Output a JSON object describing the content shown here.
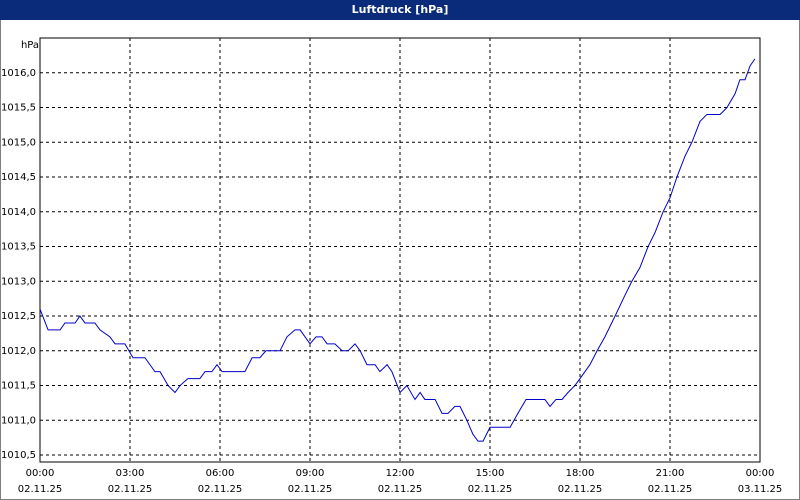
{
  "chart_data": {
    "type": "line",
    "title": "Luftdruck [hPa]",
    "y_unit": "hPa",
    "color": "#0000cc",
    "grid": true,
    "xlim": [
      0,
      24
    ],
    "ylim": [
      1010.4,
      1016.5
    ],
    "xticks": [
      {
        "value": 0,
        "label": "00:00"
      },
      {
        "value": 3,
        "label": "03:00"
      },
      {
        "value": 6,
        "label": "06:00"
      },
      {
        "value": 9,
        "label": "09:00"
      },
      {
        "value": 12,
        "label": "12:00"
      },
      {
        "value": 15,
        "label": "15:00"
      },
      {
        "value": 18,
        "label": "18:00"
      },
      {
        "value": 21,
        "label": "21:00"
      },
      {
        "value": 24,
        "label": "00:00"
      }
    ],
    "xtick_dates": [
      "02.11.25",
      "02.11.25",
      "02.11.25",
      "02.11.25",
      "02.11.25",
      "02.11.25",
      "02.11.25",
      "02.11.25",
      "03.11.25"
    ],
    "yticks": [
      {
        "value": 1010.5,
        "label": "1010,5"
      },
      {
        "value": 1011,
        "label": "1011,0"
      },
      {
        "value": 1011.5,
        "label": "1011,5"
      },
      {
        "value": 1012,
        "label": "1012,0"
      },
      {
        "value": 1012.5,
        "label": "1012,5"
      },
      {
        "value": 1013,
        "label": "1013,0"
      },
      {
        "value": 1013.5,
        "label": "1013,5"
      },
      {
        "value": 1014,
        "label": "1014,0"
      },
      {
        "value": 1014.5,
        "label": "1014,5"
      },
      {
        "value": 1015,
        "label": "1015,0"
      },
      {
        "value": 1015.5,
        "label": "1015,5"
      },
      {
        "value": 1016,
        "label": "1016,0"
      }
    ],
    "x": [
      0,
      0.27,
      0.67,
      0.83,
      1.17,
      1.33,
      1.5,
      1.83,
      2,
      2.33,
      2.5,
      2.83,
      3.1,
      3.5,
      3.83,
      4,
      4.27,
      4.5,
      4.67,
      4.93,
      5.33,
      5.5,
      5.73,
      5.9,
      6.07,
      6.83,
      7.07,
      7.33,
      7.53,
      8,
      8.23,
      8.5,
      8.67,
      9,
      9.2,
      9.4,
      9.57,
      9.83,
      10.07,
      10.27,
      10.5,
      10.67,
      10.9,
      11.17,
      11.33,
      11.57,
      11.73,
      12,
      12.23,
      12.5,
      12.67,
      12.83,
      13.17,
      13.4,
      13.6,
      13.83,
      14,
      14.23,
      14.43,
      14.6,
      14.77,
      15,
      15.67,
      15.93,
      16.2,
      16.83,
      17,
      17.2,
      17.4,
      17.6,
      17.83,
      18,
      18.33,
      18.57,
      18.83,
      19.17,
      19.5,
      19.73,
      20,
      20.27,
      20.5,
      20.77,
      21,
      21.23,
      21.5,
      21.73,
      22,
      22.23,
      22.67,
      22.9,
      23.17,
      23.33,
      23.5,
      23.67,
      23.83
    ],
    "values": [
      1012.6,
      1012.3,
      1012.3,
      1012.4,
      1012.4,
      1012.5,
      1012.4,
      1012.4,
      1012.3,
      1012.2,
      1012.1,
      1012.1,
      1011.9,
      1011.9,
      1011.7,
      1011.7,
      1011.5,
      1011.4,
      1011.5,
      1011.6,
      1011.6,
      1011.7,
      1011.7,
      1011.8,
      1011.7,
      1011.7,
      1011.9,
      1011.9,
      1012.0,
      1012.0,
      1012.2,
      1012.3,
      1012.3,
      1012.1,
      1012.2,
      1012.2,
      1012.1,
      1012.1,
      1012.0,
      1012.0,
      1012.1,
      1012.0,
      1011.8,
      1011.8,
      1011.7,
      1011.8,
      1011.7,
      1011.4,
      1011.5,
      1011.3,
      1011.4,
      1011.3,
      1011.3,
      1011.1,
      1011.1,
      1011.2,
      1011.2,
      1011.0,
      1010.8,
      1010.7,
      1010.7,
      1010.9,
      1010.9,
      1011.1,
      1011.3,
      1011.3,
      1011.2,
      1011.3,
      1011.3,
      1011.4,
      1011.5,
      1011.6,
      1011.8,
      1012.0,
      1012.2,
      1012.5,
      1012.8,
      1013.0,
      1013.2,
      1013.5,
      1013.7,
      1014.0,
      1014.2,
      1014.5,
      1014.8,
      1015.0,
      1015.3,
      1015.4,
      1015.4,
      1015.5,
      1015.7,
      1015.9,
      1015.9,
      1016.1,
      1016.2
    ]
  }
}
